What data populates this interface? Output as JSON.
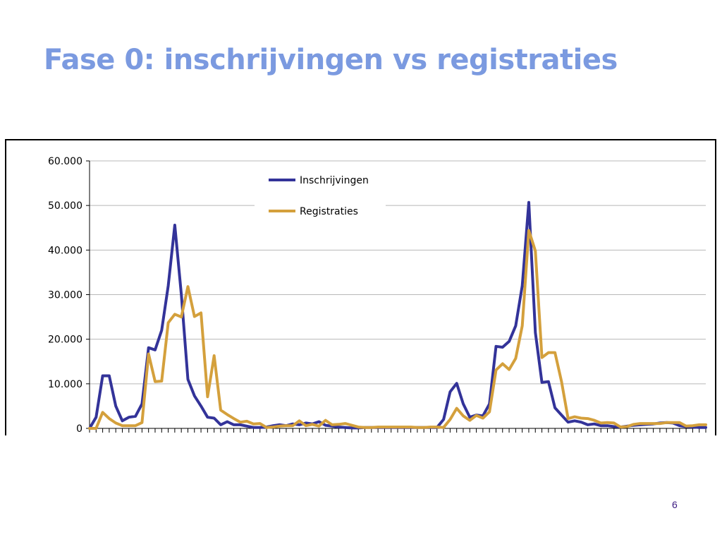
{
  "slide": {
    "title": "Fase 0: inschrijvingen vs registraties",
    "page_number": "6"
  },
  "chart_data": {
    "type": "line",
    "title": "",
    "xlabel": "",
    "ylabel": "",
    "ylim": [
      0,
      60000
    ],
    "yticks": [
      0,
      10000,
      20000,
      30000,
      40000,
      50000,
      60000
    ],
    "ytick_labels": [
      "0",
      "10.000",
      "20.000",
      "30.000",
      "40.000",
      "50.000",
      "60.000"
    ],
    "grid": true,
    "legend_position": "top-center",
    "x": [
      1,
      2,
      3,
      4,
      5,
      6,
      7,
      8,
      9,
      10,
      11,
      12,
      13,
      14,
      15,
      16,
      17,
      18,
      19,
      20,
      21,
      22,
      23,
      24,
      25,
      26,
      27,
      28,
      29,
      30,
      31,
      32,
      33,
      34,
      35,
      36,
      37,
      38,
      39,
      40,
      41,
      42,
      43,
      44,
      45,
      46,
      47,
      48,
      49,
      50,
      51,
      52,
      53,
      54,
      55,
      56,
      57,
      58,
      59,
      60,
      61,
      62,
      63,
      64,
      65,
      66,
      67,
      68,
      69,
      70,
      71,
      72,
      73,
      74,
      75,
      76,
      77,
      78,
      79,
      80,
      81,
      82,
      83,
      84,
      85,
      86,
      87,
      88,
      89,
      90,
      91,
      92,
      93,
      94,
      95
    ],
    "series": [
      {
        "name": "Inschrijvingen",
        "color": "#333399",
        "values": [
          0,
          2500,
          11800,
          11800,
          5000,
          1700,
          2500,
          2700,
          5500,
          18100,
          17600,
          22000,
          32000,
          45600,
          30000,
          11000,
          7300,
          5000,
          2500,
          2300,
          800,
          1500,
          800,
          800,
          500,
          200,
          200,
          300,
          600,
          800,
          600,
          1000,
          800,
          1200,
          1000,
          1500,
          700,
          500,
          300,
          200,
          100,
          100,
          200,
          200,
          200,
          200,
          200,
          200,
          200,
          200,
          200,
          200,
          200,
          200,
          2000,
          8200,
          10100,
          5500,
          2500,
          3000,
          2800,
          5500,
          18400,
          18200,
          19500,
          23000,
          32000,
          50700,
          21500,
          10300,
          10500,
          4600,
          3000,
          1400,
          1700,
          1400,
          800,
          1000,
          600,
          600,
          400,
          300,
          500,
          700,
          800,
          900,
          1000,
          1200,
          1300,
          1200,
          600,
          400,
          300,
          200,
          200
        ]
      },
      {
        "name": "Registraties",
        "color": "#d4a03c",
        "values": [
          0,
          0,
          3600,
          2200,
          1200,
          600,
          600,
          600,
          1300,
          16700,
          10500,
          10600,
          23700,
          25600,
          25000,
          31800,
          25100,
          25900,
          7100,
          16300,
          4100,
          3100,
          2200,
          1400,
          1600,
          1000,
          1100,
          200,
          300,
          500,
          600,
          600,
          1700,
          600,
          900,
          500,
          1800,
          800,
          900,
          1100,
          700,
          300,
          200,
          200,
          300,
          300,
          300,
          300,
          300,
          300,
          200,
          200,
          300,
          300,
          200,
          2000,
          4500,
          2800,
          1800,
          2900,
          2300,
          3700,
          13100,
          14500,
          13200,
          15700,
          23000,
          44400,
          39800,
          15900,
          17000,
          17000,
          10500,
          2200,
          2600,
          2300,
          2200,
          1800,
          1200,
          1300,
          1200,
          300,
          400,
          900,
          1100,
          1100,
          1100,
          1100,
          1300,
          1300,
          1300,
          500,
          600,
          800,
          800
        ]
      }
    ]
  }
}
